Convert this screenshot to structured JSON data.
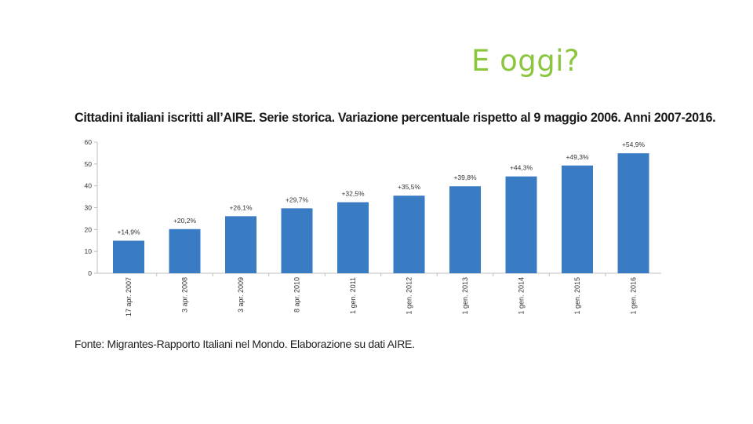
{
  "slide": {
    "title": "E oggi?"
  },
  "colors": {
    "title": "#8cc63f",
    "bar": "#3a7cc4",
    "axis": "#bfbfbf"
  },
  "chart_data": {
    "type": "bar",
    "title": "Cittadini italiani iscritti all’AIRE. Serie storica. Variazione percentuale rispetto al 9 maggio 2006. Anni 2007-2016.",
    "categories": [
      "17 apr. 2007",
      "3 apr. 2008",
      "3 apr. 2009",
      "8 apr. 2010",
      "1 gen. 2011",
      "1 gen. 2012",
      "1 gen. 2013",
      "1 gen. 2014",
      "1 gen. 2015",
      "1 gen. 2016"
    ],
    "values": [
      14.9,
      20.2,
      26.1,
      29.7,
      32.5,
      35.5,
      39.8,
      44.3,
      49.3,
      54.9
    ],
    "data_labels": [
      "+14,9%",
      "+20,2%",
      "+26,1%",
      "+29,7%",
      "+32,5%",
      "+35,5%",
      "+39,8%",
      "+44,3%",
      "+49,3%",
      "+54,9%"
    ],
    "ylim": [
      0,
      60
    ],
    "yticks": [
      0,
      10,
      20,
      30,
      40,
      50,
      60
    ],
    "grid": false,
    "source": "Fonte: Migrantes-Rapporto Italiani nel Mondo. Elaborazione su dati AIRE."
  }
}
